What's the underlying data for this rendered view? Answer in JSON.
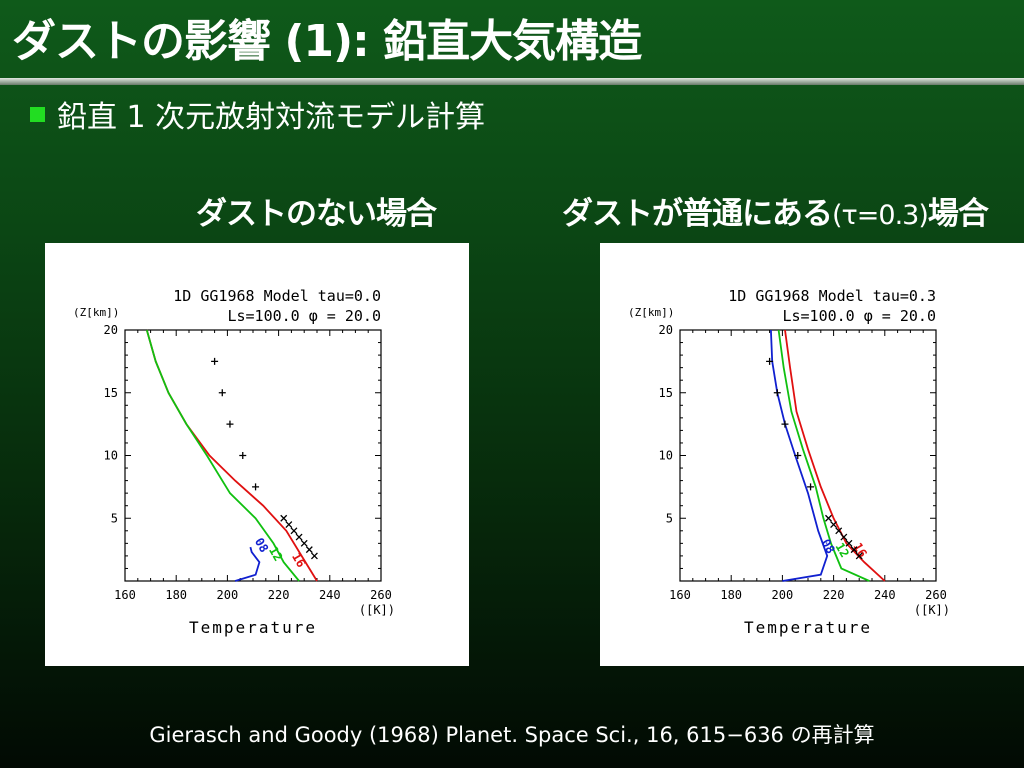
{
  "slide": {
    "title": "ダストの影響 (1): 鉛直大気構造",
    "bullet": "鉛直 1 次元放射対流モデル計算",
    "caption_left": "ダストのない場合",
    "caption_right_main": "ダストが普通にある",
    "caption_right_tau": "(τ=0.3)",
    "caption_right_tail": "場合",
    "footer": "Gierasch and Goody (1968) Planet. Space Sci., 16, 615−636 の再計算",
    "colors": {
      "bullet": "#22dd22",
      "red": "#e01010",
      "green": "#10c010",
      "blue": "#1020d0"
    }
  },
  "chart_data": [
    {
      "type": "line",
      "title": "1D GG1968 Model tau=0.0",
      "subtitle": "Ls=100.0 φ = 20.0",
      "xlabel": "Temperature",
      "xunit": "([K])",
      "ylabel": "(Z[km])",
      "xlim": [
        160,
        260
      ],
      "ylim": [
        0,
        20
      ],
      "xticks": [
        160,
        180,
        200,
        220,
        240,
        260
      ],
      "yticks": [
        5,
        10,
        15,
        20
      ],
      "series": [
        {
          "name": "16",
          "color": "#e01010",
          "x": [
            235,
            229,
            223,
            214,
            203,
            193,
            184,
            177,
            172,
            168.5
          ],
          "y": [
            0,
            2,
            4,
            6,
            8,
            10,
            12.5,
            15,
            17.5,
            20
          ]
        },
        {
          "name": "12",
          "color": "#10c010",
          "x": [
            228,
            222,
            218,
            211,
            201,
            192,
            184,
            177,
            172,
            168.5
          ],
          "y": [
            0,
            1.5,
            3,
            5,
            7,
            10,
            12.5,
            15,
            17.5,
            20
          ]
        },
        {
          "name": "08",
          "color": "#1020d0",
          "x": [
            203,
            211,
            212.5,
            209.5,
            209
          ],
          "y": [
            0,
            0.5,
            1.5,
            2.3,
            2.7
          ]
        }
      ],
      "contour_labels": [
        {
          "text": "16",
          "color": "#e01010",
          "x": 226.5,
          "y": 1.5
        },
        {
          "text": "12",
          "color": "#10c010",
          "x": 217.5,
          "y": 2.0
        },
        {
          "text": "08",
          "color": "#1020d0",
          "x": 212,
          "y": 2.7
        }
      ],
      "observations": [
        {
          "x": 195,
          "y": 17.5
        },
        {
          "x": 198,
          "y": 15
        },
        {
          "x": 201,
          "y": 12.5
        },
        {
          "x": 206,
          "y": 10
        },
        {
          "x": 211,
          "y": 7.5
        },
        {
          "x": 222,
          "y": 5
        },
        {
          "x": 224,
          "y": 4.5
        },
        {
          "x": 226,
          "y": 4
        },
        {
          "x": 228,
          "y": 3.5
        },
        {
          "x": 230,
          "y": 3
        },
        {
          "x": 232,
          "y": 2.5
        },
        {
          "x": 234,
          "y": 2
        }
      ]
    },
    {
      "type": "line",
      "title": "1D GG1968 Model tau=0.3",
      "subtitle": "Ls=100.0 φ = 20.0",
      "xlabel": "Temperature",
      "xunit": "([K])",
      "ylabel": "(Z[km])",
      "xlim": [
        160,
        260
      ],
      "ylim": [
        0,
        20
      ],
      "xticks": [
        160,
        180,
        200,
        220,
        240,
        260
      ],
      "yticks": [
        5,
        10,
        15,
        20
      ],
      "series": [
        {
          "name": "16",
          "color": "#e01010",
          "x": [
            240,
            232,
            225,
            220,
            215,
            210,
            205.5,
            203,
            201
          ],
          "y": [
            0,
            1.5,
            3,
            5,
            7.5,
            10.5,
            13.5,
            17,
            20
          ]
        },
        {
          "name": "12",
          "color": "#10c010",
          "x": [
            234,
            223,
            219,
            216,
            213,
            208,
            203.5,
            200.5,
            198.5
          ],
          "y": [
            0,
            1,
            3,
            5,
            7.5,
            10.5,
            13.5,
            17,
            20
          ]
        },
        {
          "name": "08",
          "color": "#1020d0",
          "x": [
            200,
            215,
            217.5,
            214,
            210,
            205,
            201,
            198,
            196,
            195.5
          ],
          "y": [
            0,
            0.5,
            2,
            4,
            7,
            10,
            12.5,
            15,
            17.5,
            20
          ]
        }
      ],
      "contour_labels": [
        {
          "text": "16",
          "color": "#e01010",
          "x": 229,
          "y": 2.3
        },
        {
          "text": "12",
          "color": "#10c010",
          "x": 222,
          "y": 2.3
        },
        {
          "text": "08",
          "color": "#1020d0",
          "x": 216.5,
          "y": 2.6
        }
      ],
      "observations": [
        {
          "x": 195,
          "y": 17.5
        },
        {
          "x": 198,
          "y": 15
        },
        {
          "x": 201,
          "y": 12.5
        },
        {
          "x": 206,
          "y": 10
        },
        {
          "x": 211,
          "y": 7.5
        },
        {
          "x": 218,
          "y": 5
        },
        {
          "x": 220,
          "y": 4.5
        },
        {
          "x": 222,
          "y": 4
        },
        {
          "x": 224,
          "y": 3.5
        },
        {
          "x": 226,
          "y": 3
        },
        {
          "x": 228,
          "y": 2.5
        },
        {
          "x": 230,
          "y": 2
        }
      ]
    }
  ]
}
